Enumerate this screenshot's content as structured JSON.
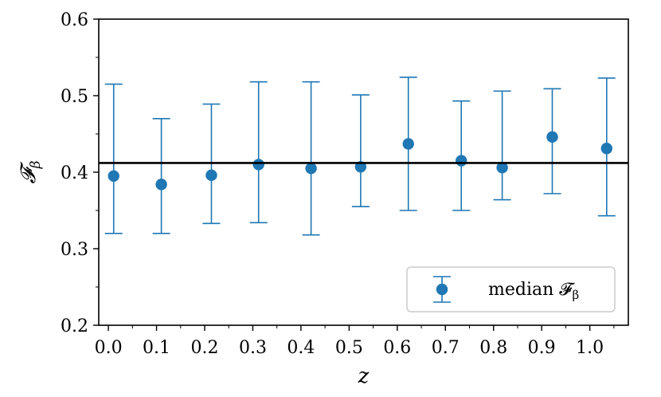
{
  "chart_data": {
    "type": "scatter",
    "xlabel": "z",
    "ylabel": "𝓕",
    "ylabel_subscript": "β",
    "xlim": [
      -0.02,
      1.08
    ],
    "ylim": [
      0.2,
      0.6
    ],
    "x_ticks": [
      "0.0",
      "0.1",
      "0.2",
      "0.3",
      "0.4",
      "0.5",
      "0.6",
      "0.7",
      "0.8",
      "0.9",
      "1.0"
    ],
    "x_tick_values": [
      0.0,
      0.1,
      0.2,
      0.3,
      0.4,
      0.5,
      0.6,
      0.7,
      0.8,
      0.9,
      1.0
    ],
    "y_ticks": [
      "0.2",
      "0.3",
      "0.4",
      "0.5",
      "0.6"
    ],
    "y_tick_values": [
      0.2,
      0.3,
      0.4,
      0.5,
      0.6
    ],
    "grid": false,
    "legend_position": "lower-right",
    "series": [
      {
        "name": "median 𝓕",
        "name_subscript": "β",
        "color": "#1f77b4",
        "points": [
          {
            "x": 0.011,
            "y": 0.395,
            "lo": 0.32,
            "hi": 0.515
          },
          {
            "x": 0.11,
            "y": 0.384,
            "lo": 0.32,
            "hi": 0.47
          },
          {
            "x": 0.214,
            "y": 0.396,
            "lo": 0.333,
            "hi": 0.489
          },
          {
            "x": 0.312,
            "y": 0.41,
            "lo": 0.334,
            "hi": 0.518
          },
          {
            "x": 0.421,
            "y": 0.405,
            "lo": 0.318,
            "hi": 0.518
          },
          {
            "x": 0.524,
            "y": 0.407,
            "lo": 0.355,
            "hi": 0.501
          },
          {
            "x": 0.623,
            "y": 0.437,
            "lo": 0.35,
            "hi": 0.524
          },
          {
            "x": 0.733,
            "y": 0.415,
            "lo": 0.35,
            "hi": 0.493
          },
          {
            "x": 0.818,
            "y": 0.406,
            "lo": 0.364,
            "hi": 0.506
          },
          {
            "x": 0.922,
            "y": 0.446,
            "lo": 0.372,
            "hi": 0.509
          },
          {
            "x": 1.035,
            "y": 0.431,
            "lo": 0.343,
            "hi": 0.523
          }
        ]
      }
    ],
    "reference_line": {
      "y": 0.412,
      "color": "#000000"
    }
  }
}
